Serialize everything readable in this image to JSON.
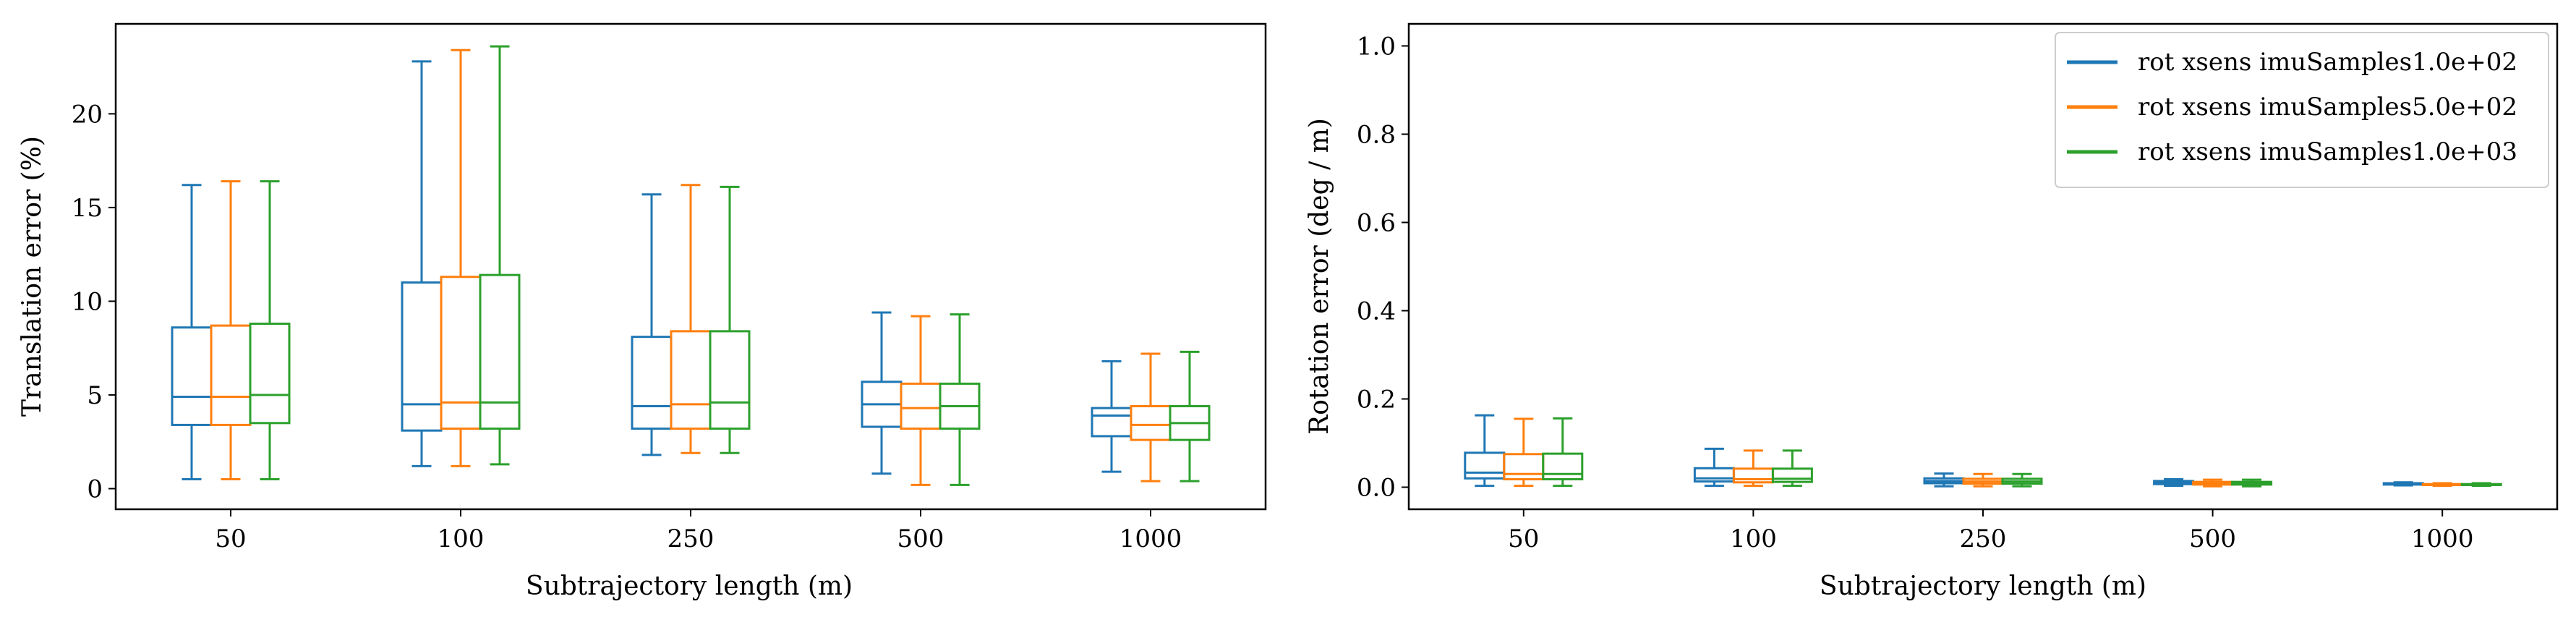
{
  "chart_data": [
    {
      "type": "box",
      "xlabel": "Subtrajectory length (m)",
      "ylabel": "Translation error (%)",
      "categories": [
        "50",
        "100",
        "250",
        "500",
        "1000"
      ],
      "ylim": [
        -1.1,
        24.8
      ],
      "yticks": [
        0,
        5,
        10,
        15,
        20
      ],
      "grid": false,
      "legend": "none",
      "series": [
        {
          "name": "rot xsens imuSamples1.0e+02",
          "color": "#1f77b4",
          "boxes": [
            {
              "whislo": 0.5,
              "q1": 3.4,
              "med": 4.9,
              "q3": 8.6,
              "whishi": 16.2
            },
            {
              "whislo": 1.2,
              "q1": 3.1,
              "med": 4.5,
              "q3": 11.0,
              "whishi": 22.8
            },
            {
              "whislo": 1.8,
              "q1": 3.2,
              "med": 4.4,
              "q3": 8.1,
              "whishi": 15.7
            },
            {
              "whislo": 0.8,
              "q1": 3.3,
              "med": 4.5,
              "q3": 5.7,
              "whishi": 9.4
            },
            {
              "whislo": 0.9,
              "q1": 2.8,
              "med": 3.9,
              "q3": 4.3,
              "whishi": 6.8
            }
          ]
        },
        {
          "name": "rot xsens imuSamples5.0e+02",
          "color": "#ff7f0e",
          "boxes": [
            {
              "whislo": 0.5,
              "q1": 3.4,
              "med": 4.9,
              "q3": 8.7,
              "whishi": 16.4
            },
            {
              "whislo": 1.2,
              "q1": 3.2,
              "med": 4.6,
              "q3": 11.3,
              "whishi": 23.4
            },
            {
              "whislo": 1.9,
              "q1": 3.2,
              "med": 4.5,
              "q3": 8.4,
              "whishi": 16.2
            },
            {
              "whislo": 0.2,
              "q1": 3.2,
              "med": 4.3,
              "q3": 5.6,
              "whishi": 9.2
            },
            {
              "whislo": 0.4,
              "q1": 2.6,
              "med": 3.4,
              "q3": 4.4,
              "whishi": 7.2
            }
          ]
        },
        {
          "name": "rot xsens imuSamples1.0e+03",
          "color": "#2ca02c",
          "boxes": [
            {
              "whislo": 0.5,
              "q1": 3.5,
              "med": 5.0,
              "q3": 8.8,
              "whishi": 16.4
            },
            {
              "whislo": 1.3,
              "q1": 3.2,
              "med": 4.6,
              "q3": 11.4,
              "whishi": 23.6
            },
            {
              "whislo": 1.9,
              "q1": 3.2,
              "med": 4.6,
              "q3": 8.4,
              "whishi": 16.1
            },
            {
              "whislo": 0.2,
              "q1": 3.2,
              "med": 4.4,
              "q3": 5.6,
              "whishi": 9.3
            },
            {
              "whislo": 0.4,
              "q1": 2.6,
              "med": 3.5,
              "q3": 4.4,
              "whishi": 7.3
            }
          ]
        }
      ]
    },
    {
      "type": "box",
      "xlabel": "Subtrajectory length (m)",
      "ylabel": "Rotation error (deg / m)",
      "categories": [
        "50",
        "100",
        "250",
        "500",
        "1000"
      ],
      "ylim": [
        -0.05,
        1.05
      ],
      "yticks": [
        0.0,
        0.2,
        0.4,
        0.6,
        0.8,
        1.0
      ],
      "yticklabels": [
        "0.0",
        "0.2",
        "0.4",
        "0.6",
        "0.8",
        "1.0"
      ],
      "grid": false,
      "legend": "top-right",
      "series": [
        {
          "name": "rot xsens imuSamples1.0e+02",
          "color": "#1f77b4",
          "boxes": [
            {
              "whislo": 0.003,
              "q1": 0.02,
              "med": 0.033,
              "q3": 0.078,
              "whishi": 0.163
            },
            {
              "whislo": 0.003,
              "q1": 0.013,
              "med": 0.02,
              "q3": 0.043,
              "whishi": 0.087
            },
            {
              "whislo": 0.002,
              "q1": 0.009,
              "med": 0.014,
              "q3": 0.02,
              "whishi": 0.031
            },
            {
              "whislo": 0.003,
              "q1": 0.007,
              "med": 0.01,
              "q3": 0.014,
              "whishi": 0.018
            },
            {
              "whislo": 0.004,
              "q1": 0.006,
              "med": 0.007,
              "q3": 0.009,
              "whishi": 0.011
            }
          ]
        },
        {
          "name": "rot xsens imuSamples5.0e+02",
          "color": "#ff7f0e",
          "boxes": [
            {
              "whislo": 0.003,
              "q1": 0.018,
              "med": 0.03,
              "q3": 0.075,
              "whishi": 0.155
            },
            {
              "whislo": 0.003,
              "q1": 0.011,
              "med": 0.018,
              "q3": 0.042,
              "whishi": 0.083
            },
            {
              "whislo": 0.002,
              "q1": 0.008,
              "med": 0.013,
              "q3": 0.019,
              "whishi": 0.03
            },
            {
              "whislo": 0.002,
              "q1": 0.006,
              "med": 0.009,
              "q3": 0.012,
              "whishi": 0.017
            },
            {
              "whislo": 0.003,
              "q1": 0.005,
              "med": 0.006,
              "q3": 0.007,
              "whishi": 0.009
            }
          ]
        },
        {
          "name": "rot xsens imuSamples1.0e+03",
          "color": "#2ca02c",
          "boxes": [
            {
              "whislo": 0.003,
              "q1": 0.018,
              "med": 0.03,
              "q3": 0.076,
              "whishi": 0.156
            },
            {
              "whislo": 0.003,
              "q1": 0.012,
              "med": 0.019,
              "q3": 0.042,
              "whishi": 0.083
            },
            {
              "whislo": 0.002,
              "q1": 0.008,
              "med": 0.013,
              "q3": 0.019,
              "whishi": 0.03
            },
            {
              "whislo": 0.002,
              "q1": 0.006,
              "med": 0.009,
              "q3": 0.012,
              "whishi": 0.017
            },
            {
              "whislo": 0.003,
              "q1": 0.005,
              "med": 0.006,
              "q3": 0.007,
              "whishi": 0.009
            }
          ]
        }
      ]
    }
  ]
}
